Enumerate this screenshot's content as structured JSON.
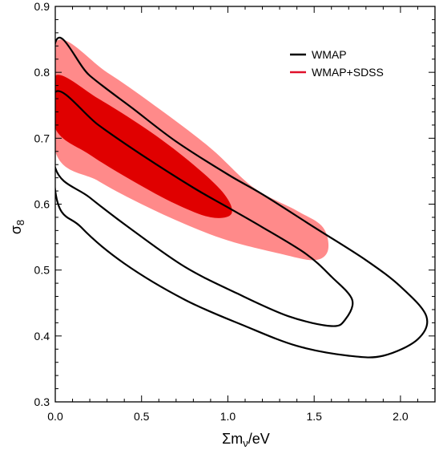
{
  "chart_data": {
    "type": "contour",
    "title": "",
    "xlabel": {
      "main": "Σm",
      "sub": "ν",
      "rest": "/eV"
    },
    "ylabel": {
      "main": "σ",
      "sub": "8"
    },
    "xlim": [
      0.0,
      2.2
    ],
    "ylim": [
      0.3,
      0.9
    ],
    "xticks": [
      "0.0",
      "0.5",
      "1.0",
      "1.5",
      "2.0"
    ],
    "yticks": [
      "0.3",
      "0.4",
      "0.5",
      "0.6",
      "0.7",
      "0.8",
      "0.9"
    ],
    "grid": false,
    "legend_position": "top-right",
    "legend": [
      {
        "label": "WMAP",
        "color": "#000000"
      },
      {
        "label": "WMAP+SDSS",
        "color": "#e0102a"
      }
    ],
    "series": [
      {
        "name": "WMAP+SDSS",
        "level": "95%",
        "style": "filled",
        "color": "#ff8a8a",
        "points": [
          [
            0.0,
            0.845
          ],
          [
            0.3,
            0.8
          ],
          [
            0.6,
            0.745
          ],
          [
            0.9,
            0.685
          ],
          [
            1.15,
            0.625
          ],
          [
            1.4,
            0.59
          ],
          [
            1.55,
            0.565
          ],
          [
            1.58,
            0.53
          ],
          [
            1.5,
            0.515
          ],
          [
            1.3,
            0.525
          ],
          [
            1.0,
            0.545
          ],
          [
            0.75,
            0.57
          ],
          [
            0.5,
            0.6
          ],
          [
            0.25,
            0.635
          ],
          [
            0.0,
            0.68
          ]
        ]
      },
      {
        "name": "WMAP+SDSS",
        "level": "68%",
        "style": "filled",
        "color": "#e00000",
        "points": [
          [
            0.0,
            0.795
          ],
          [
            0.25,
            0.76
          ],
          [
            0.55,
            0.71
          ],
          [
            0.8,
            0.66
          ],
          [
            0.98,
            0.615
          ],
          [
            1.02,
            0.585
          ],
          [
            0.9,
            0.58
          ],
          [
            0.7,
            0.6
          ],
          [
            0.45,
            0.635
          ],
          [
            0.2,
            0.675
          ],
          [
            0.0,
            0.715
          ]
        ]
      },
      {
        "name": "WMAP",
        "level": "68%",
        "style": "line",
        "color": "#000000",
        "points": [
          [
            0.0,
            0.77
          ],
          [
            0.25,
            0.72
          ],
          [
            0.5,
            0.675
          ],
          [
            0.8,
            0.625
          ],
          [
            1.0,
            0.595
          ],
          [
            1.2,
            0.565
          ],
          [
            1.45,
            0.525
          ],
          [
            1.6,
            0.49
          ],
          [
            1.72,
            0.455
          ],
          [
            1.68,
            0.425
          ],
          [
            1.6,
            0.415
          ],
          [
            1.35,
            0.43
          ],
          [
            1.05,
            0.465
          ],
          [
            0.75,
            0.505
          ],
          [
            0.45,
            0.56
          ],
          [
            0.2,
            0.61
          ],
          [
            0.0,
            0.655
          ]
        ]
      },
      {
        "name": "WMAP",
        "level": "95%",
        "style": "line",
        "color": "#000000",
        "points": [
          [
            0.0,
            0.845
          ],
          [
            0.2,
            0.795
          ],
          [
            0.45,
            0.745
          ],
          [
            0.7,
            0.695
          ],
          [
            1.0,
            0.645
          ],
          [
            1.2,
            0.615
          ],
          [
            1.5,
            0.565
          ],
          [
            1.8,
            0.515
          ],
          [
            2.0,
            0.475
          ],
          [
            2.15,
            0.43
          ],
          [
            2.1,
            0.395
          ],
          [
            1.9,
            0.37
          ],
          [
            1.7,
            0.37
          ],
          [
            1.4,
            0.385
          ],
          [
            1.1,
            0.415
          ],
          [
            0.75,
            0.455
          ],
          [
            0.4,
            0.51
          ],
          [
            0.15,
            0.565
          ],
          [
            0.0,
            0.62
          ]
        ]
      }
    ]
  }
}
